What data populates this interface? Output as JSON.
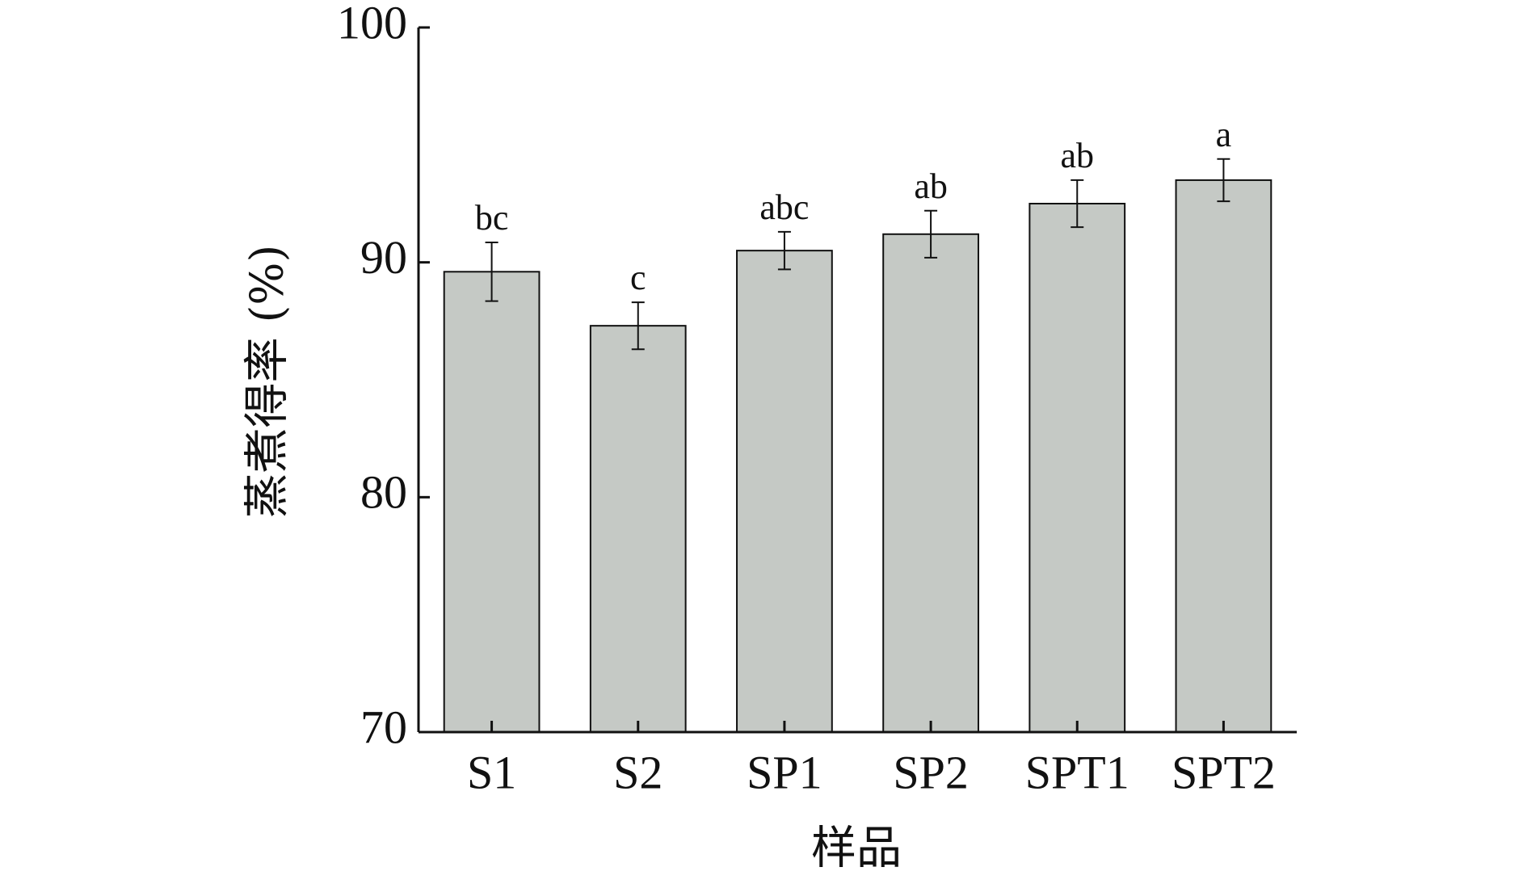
{
  "chart_data": {
    "type": "bar",
    "x_label": "样品",
    "y_label": "蒸煮得率 (%)",
    "categories": [
      "S1",
      "S2",
      "SP1",
      "SP2",
      "SPT1",
      "SPT2"
    ],
    "values": [
      89.6,
      87.3,
      90.5,
      91.2,
      92.5,
      93.5
    ],
    "errors": [
      1.25,
      1.0,
      0.8,
      1.0,
      1.0,
      0.9
    ],
    "annotations": [
      "bc",
      "c",
      "abc",
      "ab",
      "ab",
      "a"
    ],
    "color": "#c5c9c5",
    "ylim": [
      70,
      100
    ],
    "yticks": [
      70,
      80,
      90,
      100
    ],
    "grid": false
  }
}
